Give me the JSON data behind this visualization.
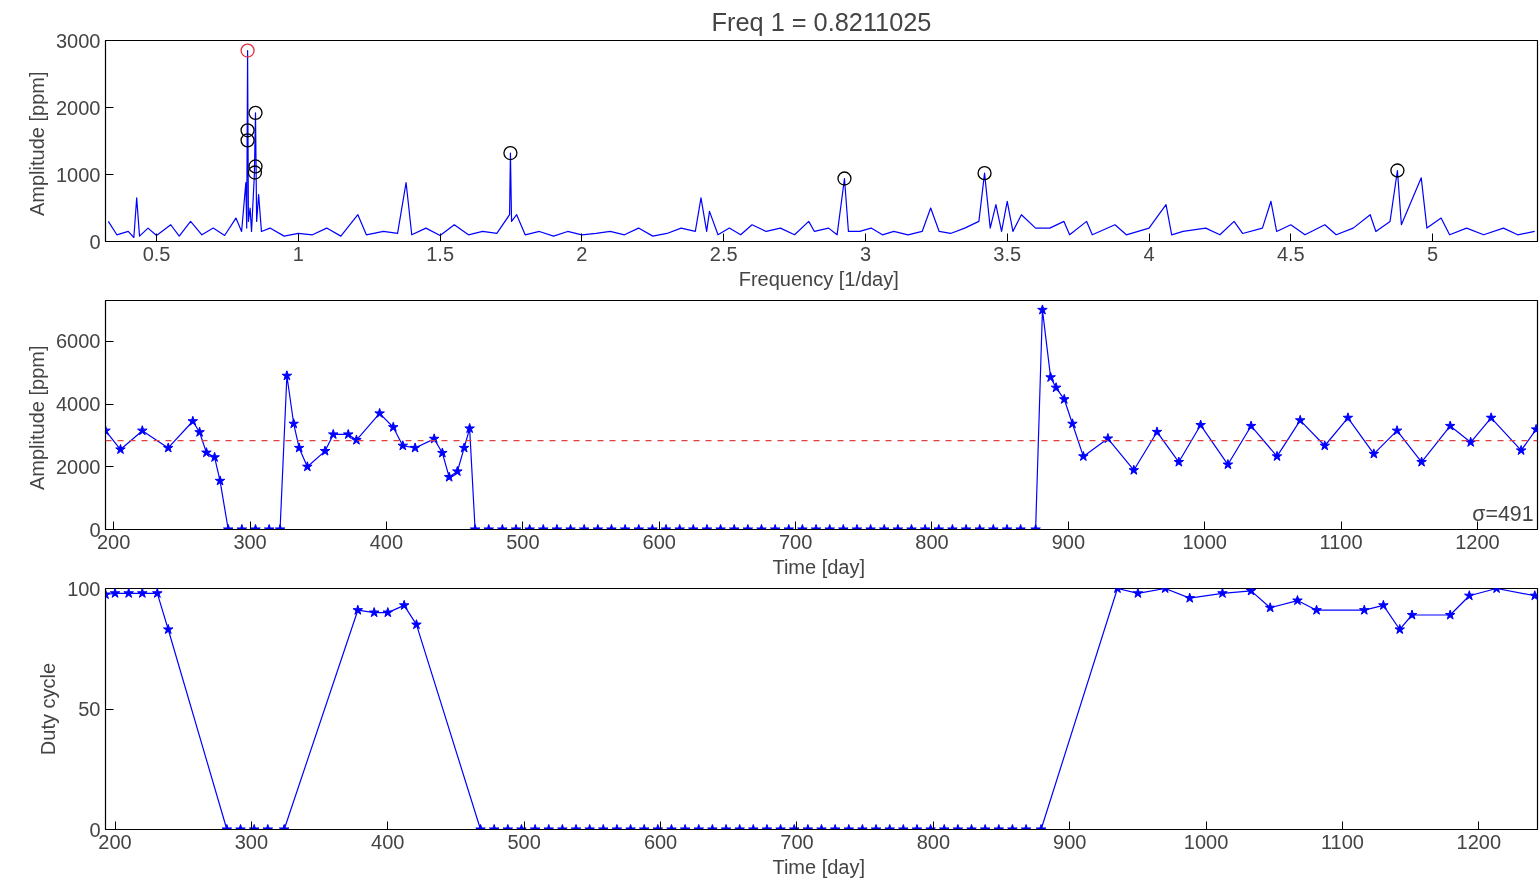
{
  "chart_data": [
    {
      "type": "line",
      "title": "Freq 1 = 0.8211025",
      "xlabel": "Frequency  [1/day]",
      "ylabel": "Amplitude  [ppm]",
      "xlim": [
        0.32,
        5.37
      ],
      "ylim": [
        0,
        3000
      ],
      "xticks": [
        0.5,
        1,
        1.5,
        2,
        2.5,
        3,
        3.5,
        4,
        4.5,
        5
      ],
      "yticks": [
        0,
        1000,
        2000,
        3000
      ],
      "grid": false,
      "series": [
        {
          "color": "#0000ff",
          "marker": "none",
          "x": [
            0.33,
            0.36,
            0.4,
            0.42,
            0.43,
            0.44,
            0.47,
            0.5,
            0.55,
            0.58,
            0.62,
            0.66,
            0.7,
            0.74,
            0.78,
            0.8,
            0.815,
            0.818,
            0.8211,
            0.824,
            0.83,
            0.835,
            0.845,
            0.849,
            0.853,
            0.86,
            0.87,
            0.9,
            0.95,
            1.0,
            1.05,
            1.1,
            1.15,
            1.21,
            1.24,
            1.3,
            1.35,
            1.38,
            1.4,
            1.45,
            1.5,
            1.55,
            1.6,
            1.65,
            1.7,
            1.745,
            1.748,
            1.752,
            1.77,
            1.8,
            1.85,
            1.9,
            1.95,
            2.0,
            2.05,
            2.1,
            2.15,
            2.2,
            2.25,
            2.3,
            2.35,
            2.4,
            2.42,
            2.44,
            2.45,
            2.48,
            2.52,
            2.56,
            2.6,
            2.65,
            2.7,
            2.75,
            2.8,
            2.82,
            2.87,
            2.9,
            2.926,
            2.94,
            2.98,
            3.02,
            3.06,
            3.1,
            3.15,
            3.2,
            3.23,
            3.26,
            3.3,
            3.35,
            3.4,
            3.42,
            3.44,
            3.46,
            3.48,
            3.5,
            3.52,
            3.55,
            3.6,
            3.65,
            3.7,
            3.72,
            3.78,
            3.8,
            3.88,
            3.92,
            4.0,
            4.06,
            4.08,
            4.12,
            4.2,
            4.25,
            4.3,
            4.33,
            4.4,
            4.43,
            4.45,
            4.5,
            4.55,
            4.62,
            4.66,
            4.72,
            4.78,
            4.8,
            4.85,
            4.876,
            4.89,
            4.96,
            4.98,
            5.03,
            5.06,
            5.12,
            5.18,
            5.25,
            5.3,
            5.36
          ],
          "values": [
            300,
            100,
            150,
            60,
            650,
            80,
            200,
            90,
            250,
            80,
            300,
            100,
            200,
            90,
            350,
            150,
            880,
            200,
            2850,
            300,
            500,
            150,
            1000,
            1920,
            300,
            700,
            150,
            200,
            80,
            120,
            100,
            200,
            80,
            400,
            100,
            150,
            120,
            880,
            100,
            200,
            90,
            250,
            100,
            150,
            120,
            400,
            1320,
            300,
            400,
            100,
            150,
            80,
            150,
            100,
            120,
            150,
            100,
            200,
            80,
            120,
            200,
            150,
            650,
            150,
            450,
            100,
            200,
            100,
            250,
            150,
            200,
            100,
            300,
            150,
            200,
            100,
            940,
            150,
            150,
            200,
            100,
            150,
            100,
            150,
            500,
            150,
            120,
            200,
            300,
            1020,
            200,
            550,
            150,
            600,
            150,
            400,
            200,
            200,
            300,
            100,
            300,
            100,
            250,
            100,
            200,
            550,
            100,
            150,
            200,
            100,
            300,
            120,
            200,
            600,
            150,
            250,
            100,
            250,
            100,
            200,
            400,
            150,
            300,
            1060,
            250,
            950,
            200,
            350,
            100,
            200,
            100,
            200,
            100,
            150
          ]
        },
        {
          "type": "scatter",
          "color": "#000000",
          "marker": "circle",
          "x": [
            0.821,
            0.821,
            0.849,
            0.849,
            0.847,
            1.748,
            2.926,
            3.42,
            4.876
          ],
          "values": [
            1660,
            1510,
            1920,
            1120,
            1030,
            1320,
            940,
            1020,
            1060
          ]
        },
        {
          "type": "scatter",
          "color": "#e03040",
          "marker": "circle",
          "x": [
            0.8211
          ],
          "values": [
            2850
          ]
        }
      ]
    },
    {
      "type": "line",
      "xlabel": "Time  [day]",
      "ylabel": "Amplitude  [ppm]",
      "xlim": [
        194,
        1244
      ],
      "ylim": [
        0,
        7300
      ],
      "xticks": [
        200,
        300,
        400,
        500,
        600,
        700,
        800,
        900,
        1000,
        1100,
        1200
      ],
      "yticks": [
        0,
        2000,
        4000,
        6000
      ],
      "grid": false,
      "ref_lines": [
        {
          "axis": "y",
          "value": 2830,
          "color": "#e04040",
          "line_style": "dashed"
        }
      ],
      "annotations": [
        "σ=491"
      ],
      "series": [
        {
          "color": "#0000ff",
          "marker": "star",
          "x": [
            194,
            205,
            221,
            240,
            258,
            263,
            268,
            274,
            278,
            284,
            294,
            304,
            314,
            322,
            327,
            332,
            336,
            342,
            355,
            361,
            372,
            378,
            395,
            405,
            412,
            421,
            435,
            441,
            446,
            452,
            457,
            461,
            465,
            475,
            485,
            495,
            505,
            515,
            525,
            535,
            545,
            555,
            565,
            575,
            585,
            595,
            605,
            615,
            625,
            635,
            645,
            655,
            665,
            675,
            685,
            695,
            705,
            715,
            725,
            735,
            745,
            755,
            765,
            775,
            785,
            795,
            805,
            815,
            825,
            835,
            845,
            855,
            865,
            876,
            881,
            887,
            891,
            897,
            903,
            911,
            929,
            948,
            965,
            981,
            997,
            1017,
            1034,
            1053,
            1070,
            1088,
            1105,
            1124,
            1141,
            1159,
            1180,
            1195,
            1210,
            1232,
            1243
          ],
          "values": [
            3150,
            2550,
            3150,
            2600,
            3450,
            3100,
            2450,
            2300,
            1550,
            0,
            0,
            0,
            0,
            0,
            4900,
            3370,
            2600,
            2000,
            2500,
            3030,
            3030,
            2850,
            3700,
            3260,
            2670,
            2600,
            2890,
            2440,
            1670,
            1850,
            2600,
            3220,
            0,
            0,
            0,
            0,
            0,
            0,
            0,
            0,
            0,
            0,
            0,
            0,
            0,
            0,
            0,
            0,
            0,
            0,
            0,
            0,
            0,
            0,
            0,
            0,
            0,
            0,
            0,
            0,
            0,
            0,
            0,
            0,
            0,
            0,
            0,
            0,
            0,
            0,
            0,
            0,
            0,
            0,
            7000,
            4850,
            4520,
            4150,
            3370,
            2330,
            2900,
            1890,
            3110,
            2150,
            3330,
            2070,
            3300,
            2330,
            3480,
            2670,
            3560,
            2410,
            3150,
            2150,
            3300,
            2780,
            3560,
            2520,
            3190
          ]
        }
      ]
    },
    {
      "type": "line",
      "xlabel": "Time  [day]",
      "ylabel": "Duty cycle",
      "xlim": [
        193,
        1243
      ],
      "ylim": [
        0,
        100
      ],
      "xticks": [
        200,
        300,
        400,
        500,
        600,
        700,
        800,
        900,
        1000,
        1100,
        1200
      ],
      "yticks": [
        0,
        50,
        100
      ],
      "grid": false,
      "series": [
        {
          "color": "#0000ff",
          "marker": "star",
          "x": [
            193,
            200,
            210,
            220,
            231,
            239,
            282,
            292,
            302,
            312,
            324,
            378,
            390,
            400,
            412,
            421,
            468,
            478,
            488,
            498,
            508,
            518,
            528,
            538,
            548,
            558,
            568,
            578,
            588,
            598,
            608,
            618,
            628,
            638,
            648,
            658,
            668,
            678,
            688,
            698,
            708,
            718,
            728,
            738,
            748,
            758,
            768,
            778,
            788,
            798,
            808,
            818,
            828,
            838,
            848,
            858,
            868,
            879,
            935,
            950,
            970,
            988,
            1012,
            1033,
            1047,
            1067,
            1081,
            1116,
            1130,
            1142,
            1151,
            1179,
            1193,
            1213,
            1241
          ],
          "values": [
            97.5,
            98,
            98,
            98,
            98,
            83,
            0,
            0,
            0,
            0,
            0,
            91,
            90,
            90,
            93,
            85,
            0,
            0,
            0,
            0,
            0,
            0,
            0,
            0,
            0,
            0,
            0,
            0,
            0,
            0,
            0,
            0,
            0,
            0,
            0,
            0,
            0,
            0,
            0,
            0,
            0,
            0,
            0,
            0,
            0,
            0,
            0,
            0,
            0,
            0,
            0,
            0,
            0,
            0,
            0,
            0,
            0,
            0,
            100,
            98,
            100,
            96,
            98,
            99,
            92,
            95,
            91,
            91,
            93,
            83,
            89,
            89,
            97,
            100,
            97
          ]
        }
      ]
    }
  ]
}
